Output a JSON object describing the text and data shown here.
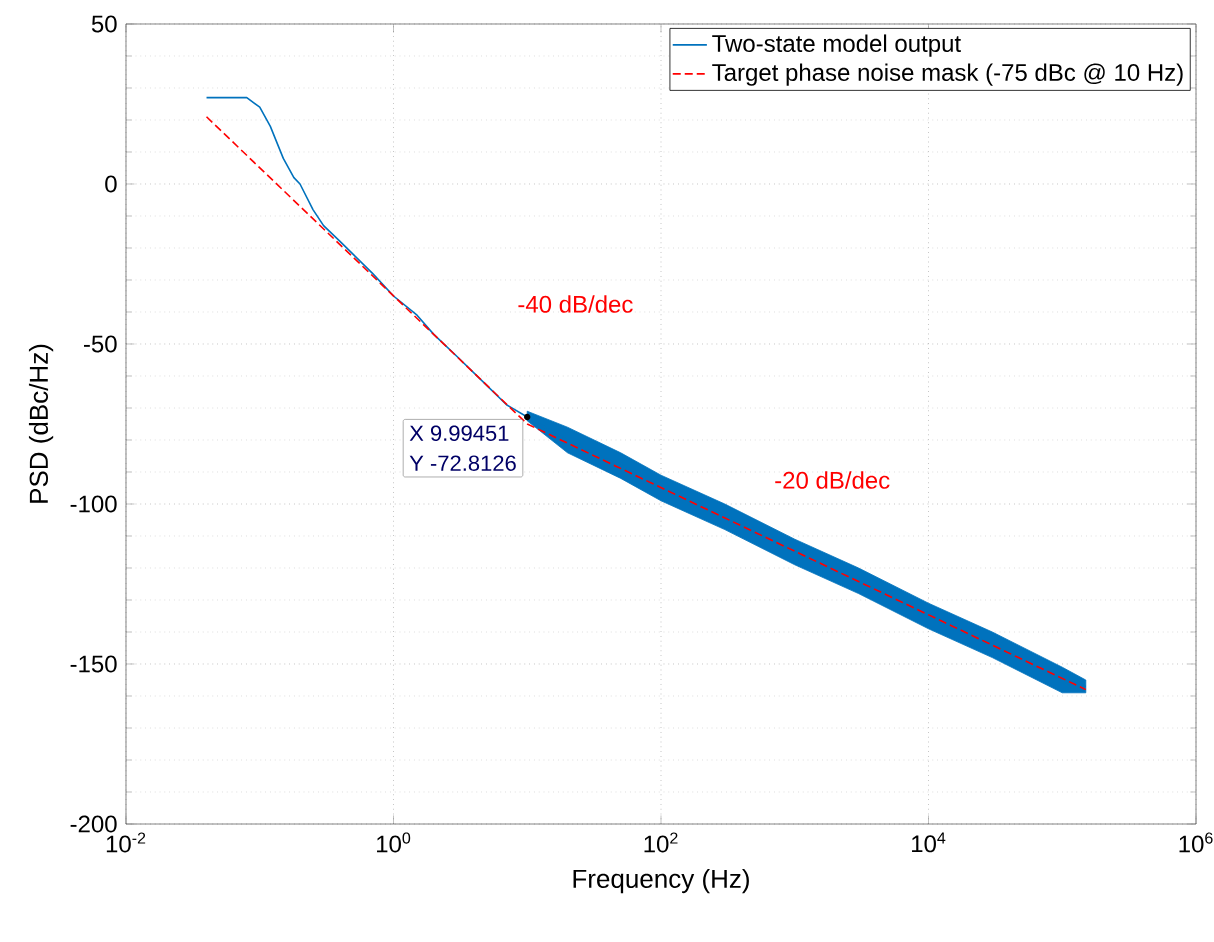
{
  "chart_data": {
    "type": "line",
    "xlabel": "Frequency (Hz)",
    "ylabel": "PSD (dBc/Hz)",
    "log": "x",
    "xlim": [
      0.01,
      1000000
    ],
    "ylim": [
      -200,
      50
    ],
    "xticks": [
      {
        "value": 0.01,
        "label": "10$^{-2}$"
      },
      {
        "value": 1,
        "label": "10$^{0}$"
      },
      {
        "value": 100,
        "label": "10$^{2}$"
      },
      {
        "value": 10000,
        "label": "10$^{4}$"
      },
      {
        "value": 1000000,
        "label": "10$^{6}$"
      }
    ],
    "yticks": [
      -200,
      -150,
      -100,
      -50,
      0,
      50
    ],
    "grid": true,
    "legend": "top right",
    "series": [
      {
        "name": "Two-state model output",
        "color": "#0072bd",
        "line_style": "solid",
        "x": [
          0.04,
          0.08,
          0.1,
          0.12,
          0.15,
          0.18,
          0.2,
          0.25,
          0.3,
          0.4,
          0.5,
          0.7,
          1,
          1.5,
          2,
          3,
          5,
          7,
          9.99451,
          20,
          50,
          100,
          300,
          1000,
          3000,
          10000,
          30000,
          100000,
          150000
        ],
        "values": [
          27,
          27,
          24,
          18,
          8,
          2,
          0,
          -8,
          -13,
          -18,
          -22,
          -28,
          -35,
          -41,
          -47,
          -54,
          -63,
          -69,
          -72.8126,
          -80,
          -88,
          -95,
          -104,
          -115,
          -124,
          -135,
          -144,
          -155,
          -157
        ],
        "upper": [
          null,
          null,
          null,
          null,
          null,
          null,
          null,
          null,
          null,
          null,
          null,
          null,
          null,
          null,
          null,
          null,
          null,
          null,
          -71,
          -76,
          -84,
          -91,
          -100,
          -111,
          -120,
          -131,
          -140,
          -151,
          -155
        ],
        "lower": [
          null,
          null,
          null,
          null,
          null,
          null,
          null,
          null,
          null,
          null,
          null,
          null,
          null,
          null,
          null,
          null,
          null,
          null,
          -74,
          -84,
          -92,
          -99,
          -108,
          -119,
          -128,
          -139,
          -148,
          -159,
          -159
        ]
      },
      {
        "name": "Target phase noise mask (-75 dBc @ 10 Hz)",
        "color": "#ff0000",
        "line_style": "dashed",
        "x": [
          0.04,
          10,
          150000
        ],
        "values": [
          21,
          -75,
          -158
        ]
      }
    ],
    "annotations": [
      "-40 dB/dec",
      "-20 dB/dec",
      {
        "text": "X 9.99451",
        "x": 9.99451,
        "y": -72.8126
      },
      {
        "text": "Y -72.8126",
        "x": 9.99451,
        "y": -72.8126
      }
    ]
  }
}
